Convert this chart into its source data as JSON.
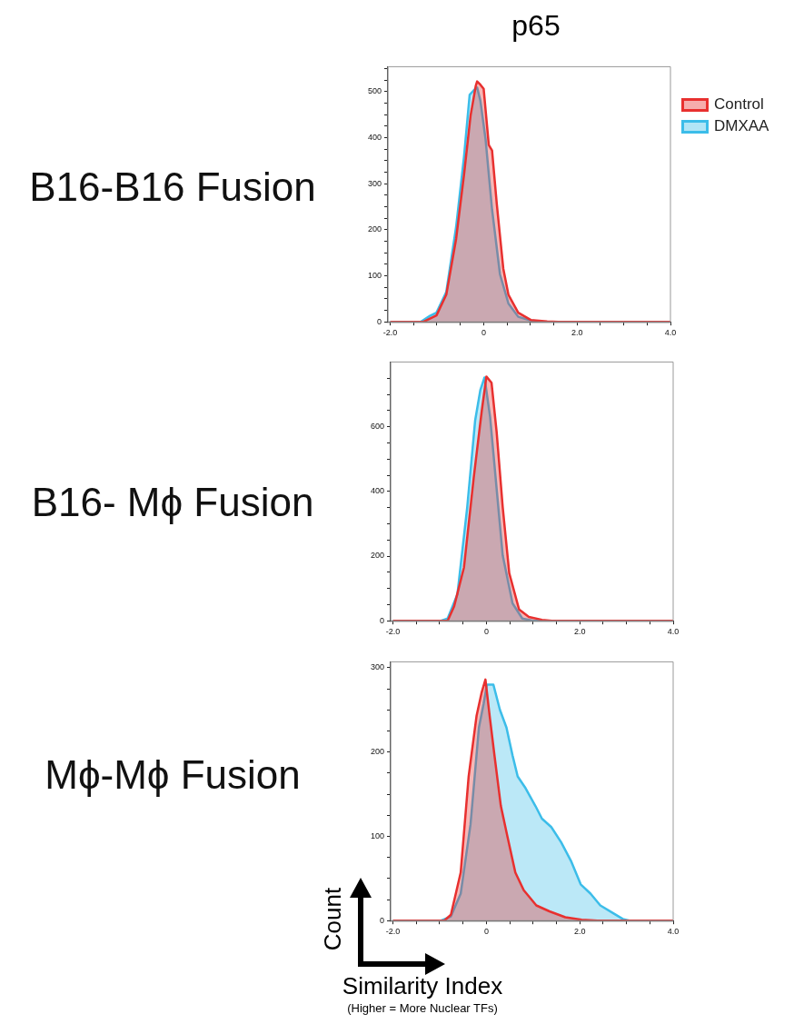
{
  "chart_data": [
    {
      "type": "area",
      "title": "B16-B16 Fusion",
      "annotations": [
        "p65"
      ],
      "legend": "top right",
      "xlim": [
        -2.05,
        4.0
      ],
      "xticks": [
        {
          "value": -2,
          "label": "-2.0"
        },
        {
          "value": -1.5,
          "label": null
        },
        {
          "value": -1,
          "label": null
        },
        {
          "value": -0.5,
          "label": null
        },
        {
          "value": 0,
          "label": "0"
        },
        {
          "value": 0.5,
          "label": null
        },
        {
          "value": 1,
          "label": null
        },
        {
          "value": 1.5,
          "label": null
        },
        {
          "value": 2,
          "label": "2.0"
        },
        {
          "value": 2.5,
          "label": null
        },
        {
          "value": 3,
          "label": null
        },
        {
          "value": 3.5,
          "label": null
        },
        {
          "value": 4,
          "label": "4.0"
        }
      ],
      "ylim": [
        0,
        554
      ],
      "yticks": [
        0,
        {
          "value": 25,
          "label": null
        },
        {
          "value": 50,
          "label": null
        },
        {
          "value": 75,
          "label": null
        },
        100,
        {
          "value": 125,
          "label": null
        },
        {
          "value": 150,
          "label": null
        },
        {
          "value": 175,
          "label": null
        },
        200,
        {
          "value": 225,
          "label": null
        },
        {
          "value": 250,
          "label": null
        },
        {
          "value": 275,
          "label": null
        },
        300,
        {
          "value": 325,
          "label": null
        },
        {
          "value": 350,
          "label": null
        },
        {
          "value": 375,
          "label": null
        },
        400,
        {
          "value": 425,
          "label": null
        },
        {
          "value": 450,
          "label": null
        },
        {
          "value": 475,
          "label": null
        },
        500,
        {
          "value": 525,
          "label": null
        },
        {
          "value": 550,
          "label": null
        }
      ],
      "marker": "none",
      "grid": false,
      "series": [
        {
          "name": "Control",
          "color": "#e8302f",
          "x": [
            -2,
            -1.29,
            -1.01,
            -0.8,
            -0.59,
            -0.42,
            -0.28,
            -0.17,
            -0.14,
            -0.07,
            0.0,
            0.11,
            0.18,
            0.28,
            0.42,
            0.53,
            0.74,
            1.01,
            1.36,
            1.6,
            4.0
          ],
          "values": [
            0,
            0,
            14,
            59,
            180,
            320,
            448,
            512,
            522,
            515,
            506,
            384,
            372,
            257,
            116,
            59,
            20,
            4,
            1,
            0,
            0
          ]
        },
        {
          "name": "DMXAA",
          "color": "#3cbde9",
          "x": [
            -2,
            -1.35,
            -1.15,
            -1.01,
            -0.8,
            -0.59,
            -0.42,
            -0.3,
            -0.21,
            -0.14,
            -0.07,
            0.04,
            0.18,
            0.35,
            0.53,
            0.74,
            1.01,
            1.3,
            4.0
          ],
          "values": [
            0,
            0,
            13,
            20,
            65,
            206,
            359,
            493,
            503,
            509,
            480,
            397,
            244,
            103,
            40,
            11,
            3,
            0,
            0
          ]
        }
      ]
    },
    {
      "type": "area",
      "title": "B16- Mϕ Fusion",
      "xlim": [
        -2.05,
        4.0
      ],
      "xticks": [
        {
          "value": -2,
          "label": "-2.0"
        },
        {
          "value": -1.5,
          "label": null
        },
        {
          "value": -1,
          "label": null
        },
        {
          "value": -0.5,
          "label": null
        },
        {
          "value": 0,
          "label": "0"
        },
        {
          "value": 0.5,
          "label": null
        },
        {
          "value": 1,
          "label": null
        },
        {
          "value": 1.5,
          "label": null
        },
        {
          "value": 2,
          "label": "2.0"
        },
        {
          "value": 2.5,
          "label": null
        },
        {
          "value": 3,
          "label": null
        },
        {
          "value": 3.5,
          "label": null
        },
        {
          "value": 4,
          "label": "4.0"
        }
      ],
      "ylim": [
        0,
        800
      ],
      "yticks": [
        0,
        {
          "value": 50,
          "label": null
        },
        {
          "value": 100,
          "label": null
        },
        {
          "value": 150,
          "label": null
        },
        200,
        {
          "value": 250,
          "label": null
        },
        {
          "value": 300,
          "label": null
        },
        {
          "value": 350,
          "label": null
        },
        400,
        {
          "value": 450,
          "label": null
        },
        {
          "value": 500,
          "label": null
        },
        {
          "value": 550,
          "label": null
        },
        600,
        {
          "value": 650,
          "label": null
        },
        {
          "value": 700,
          "label": null
        },
        {
          "value": 750,
          "label": null
        }
      ],
      "marker": "none",
      "grid": false,
      "series": [
        {
          "color": "#e8302f",
          "x": [
            -2,
            -0.83,
            -0.69,
            -0.48,
            -0.27,
            -0.1,
            0.0,
            0.11,
            0.22,
            0.35,
            0.49,
            0.7,
            0.91,
            1.19,
            1.4,
            4.0
          ],
          "values": [
            0,
            0,
            45,
            165,
            444,
            648,
            755,
            736,
            583,
            351,
            147,
            35,
            12,
            3,
            0,
            0
          ]
        },
        {
          "color": "#3cbde9",
          "x": [
            -2,
            -0.97,
            -0.83,
            -0.62,
            -0.41,
            -0.24,
            -0.13,
            -0.04,
            0.08,
            0.22,
            0.35,
            0.56,
            0.77,
            1.0,
            4.0
          ],
          "values": [
            0,
            0,
            7,
            82,
            351,
            620,
            713,
            752,
            630,
            407,
            202,
            54,
            7,
            0,
            0
          ]
        }
      ]
    },
    {
      "type": "area",
      "title": "Mϕ-Mϕ Fusion",
      "xlabel": "Similarity Index",
      "ylabel": "Count",
      "annotations": [
        "(Higher = More Nuclear TFs)"
      ],
      "xlim": [
        -2.05,
        4.0
      ],
      "xticks": [
        {
          "value": -2,
          "label": "-2.0"
        },
        {
          "value": -1.5,
          "label": null
        },
        {
          "value": -1,
          "label": null
        },
        {
          "value": -0.5,
          "label": null
        },
        {
          "value": 0,
          "label": "0"
        },
        {
          "value": 0.5,
          "label": null
        },
        {
          "value": 1,
          "label": null
        },
        {
          "value": 1.5,
          "label": null
        },
        {
          "value": 2,
          "label": "2.0"
        },
        {
          "value": 2.5,
          "label": null
        },
        {
          "value": 3,
          "label": null
        },
        {
          "value": 3.5,
          "label": null
        },
        {
          "value": 4,
          "label": "4.0"
        }
      ],
      "ylim": [
        0,
        307
      ],
      "yticks": [
        0,
        {
          "value": 25,
          "label": null
        },
        {
          "value": 50,
          "label": null
        },
        {
          "value": 75,
          "label": null
        },
        100,
        {
          "value": 125,
          "label": null
        },
        {
          "value": 150,
          "label": null
        },
        {
          "value": 175,
          "label": null
        },
        200,
        {
          "value": 225,
          "label": null
        },
        {
          "value": 250,
          "label": null
        },
        {
          "value": 275,
          "label": null
        },
        300
      ],
      "marker": "none",
      "grid": false,
      "series": [
        {
          "color": "#e8302f",
          "x": [
            -2,
            -0.9,
            -0.76,
            -0.55,
            -0.38,
            -0.21,
            -0.1,
            -0.02,
            0.07,
            0.18,
            0.31,
            0.45,
            0.62,
            0.8,
            1.07,
            1.35,
            1.69,
            2.04,
            2.38,
            4.0
          ],
          "values": [
            0,
            0,
            7,
            57,
            171,
            243,
            271,
            286,
            243,
            193,
            136,
            100,
            57,
            36,
            18,
            11,
            4,
            1,
            0,
            0
          ]
        },
        {
          "color": "#3cbde9",
          "x": [
            -2,
            -0.97,
            -0.76,
            -0.55,
            -0.34,
            -0.16,
            -0.06,
            0.01,
            0.15,
            0.29,
            0.43,
            0.56,
            0.67,
            0.84,
            1.05,
            1.19,
            1.39,
            1.6,
            1.81,
            2.02,
            2.23,
            2.44,
            2.71,
            2.92,
            3.06,
            4.0
          ],
          "values": [
            0,
            0,
            5,
            32,
            114,
            229,
            257,
            280,
            280,
            250,
            229,
            196,
            171,
            157,
            136,
            121,
            111,
            93,
            71,
            43,
            32,
            18,
            9,
            2,
            0,
            0
          ]
        }
      ]
    }
  ]
}
